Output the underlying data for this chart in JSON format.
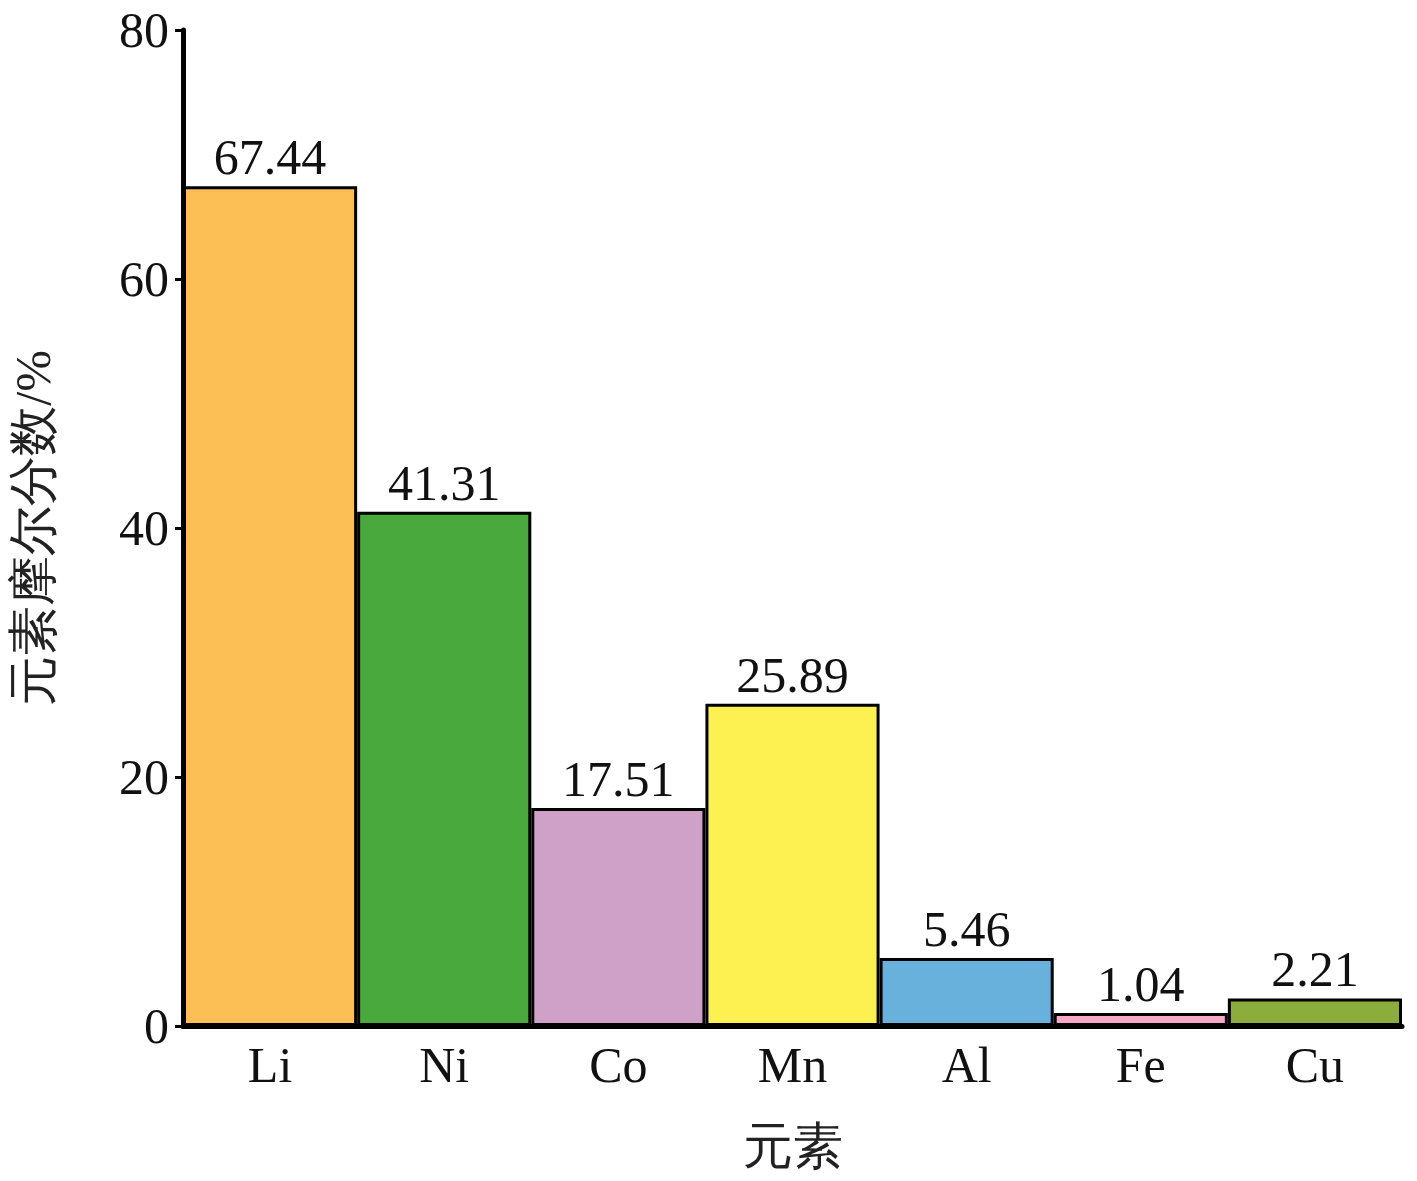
{
  "chart_data": {
    "type": "bar",
    "xlabel": "元素",
    "ylabel": "元素摩尔分数/%",
    "categories": [
      "Li",
      "Ni",
      "Co",
      "Mn",
      "Al",
      "Fe",
      "Cu"
    ],
    "values": [
      67.44,
      41.31,
      17.51,
      25.89,
      5.46,
      1.04,
      2.21
    ],
    "colors": [
      "#fbbf55",
      "#4aa93c",
      "#cfa0c8",
      "#fdf151",
      "#68b1dc",
      "#f7a7c8",
      "#8cad3c"
    ],
    "ylim": [
      0,
      80
    ],
    "yticks": [
      0,
      20,
      40,
      60,
      80
    ],
    "data_labels": true
  }
}
